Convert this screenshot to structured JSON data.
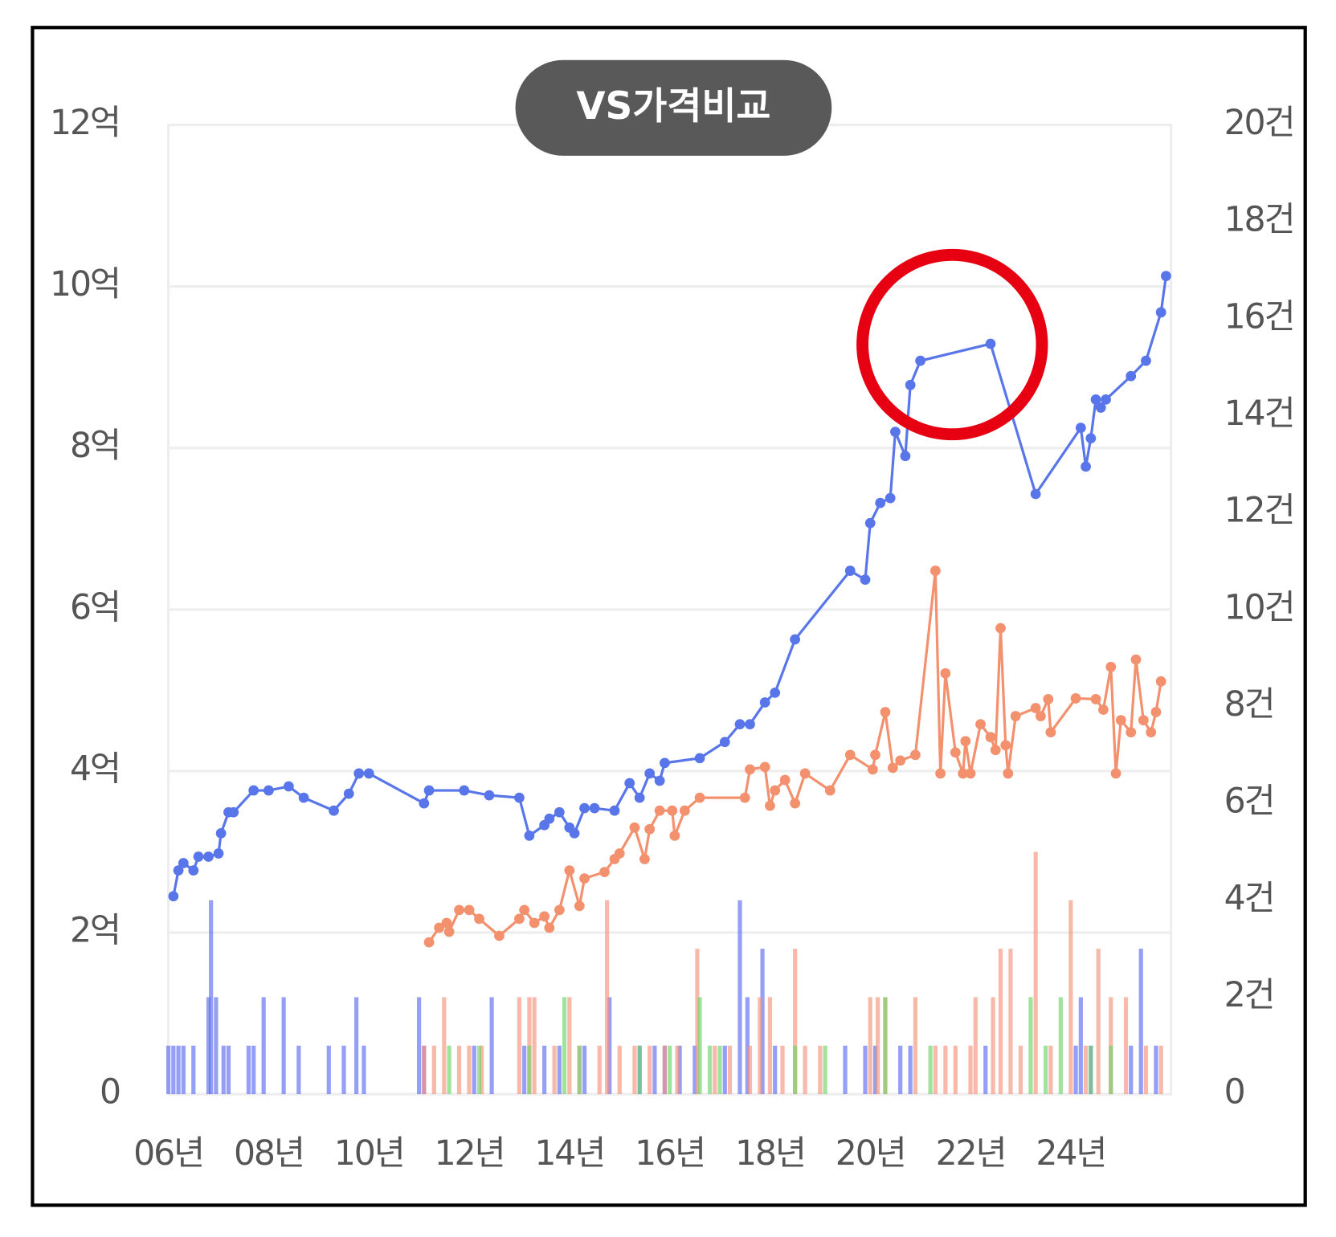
{
  "chart_data": {
    "type": "combo",
    "title": "VS가격비교",
    "xlim": [
      2006,
      2026
    ],
    "xticks": [
      {
        "value": 2006,
        "label": "06년"
      },
      {
        "value": 2008,
        "label": "08년"
      },
      {
        "value": 2010,
        "label": "10년"
      },
      {
        "value": 2012,
        "label": "12년"
      },
      {
        "value": 2014,
        "label": "14년"
      },
      {
        "value": 2016,
        "label": "16년"
      },
      {
        "value": 2018,
        "label": "18년"
      },
      {
        "value": 2020,
        "label": "20년"
      },
      {
        "value": 2022,
        "label": "22년"
      },
      {
        "value": 2024,
        "label": "24년"
      }
    ],
    "ylim": [
      0,
      12
    ],
    "yticks": [
      0,
      {
        "value": 2,
        "label": "2억"
      },
      {
        "value": 4,
        "label": "4억"
      },
      {
        "value": 6,
        "label": "6억"
      },
      {
        "value": 8,
        "label": "8억"
      },
      {
        "value": 10,
        "label": "10억"
      },
      {
        "value": 12,
        "label": "12억"
      }
    ],
    "y2lim": [
      0,
      20
    ],
    "y2ticks": [
      0,
      {
        "value": 2,
        "label": "2건"
      },
      {
        "value": 4,
        "label": "4건"
      },
      {
        "value": 6,
        "label": "6건"
      },
      {
        "value": 8,
        "label": "8건"
      },
      {
        "value": 10,
        "label": "10건"
      },
      {
        "value": 12,
        "label": "12건"
      },
      {
        "value": 14,
        "label": "14건"
      },
      {
        "value": 16,
        "label": "16건"
      },
      {
        "value": 18,
        "label": "18건"
      },
      {
        "value": 20,
        "label": "20건"
      }
    ],
    "grid": true,
    "series": [
      {
        "type": "bar",
        "axis": "y2",
        "color": "#5c6cf0",
        "x": [
          2006.0,
          2006.1,
          2006.2,
          2006.3,
          2006.5,
          2006.8,
          2006.85,
          2006.95,
          2007.1,
          2007.2,
          2007.6,
          2007.7,
          2007.9,
          2008.3,
          2008.6,
          2009.2,
          2009.5,
          2009.75,
          2009.9,
          2011.0,
          2011.1,
          2012.1,
          2012.45,
          2013.1,
          2013.5,
          2013.8,
          2014.3,
          2014.8,
          2015.4,
          2015.7,
          2015.9,
          2016.2,
          2016.5,
          2017.1,
          2017.4,
          2017.55,
          2017.85,
          2018.1,
          2019.5,
          2019.9,
          2020.1,
          2020.6,
          2020.8,
          2022.3,
          2024.1,
          2024.2,
          2024.4,
          2025.2,
          2025.4,
          2025.7
        ],
        "values": [
          1,
          1,
          1,
          1,
          1,
          2,
          4,
          2,
          1,
          1,
          1,
          1,
          2,
          2,
          1,
          1,
          1,
          2,
          1,
          2,
          1,
          1,
          2,
          1,
          1,
          1,
          1,
          2,
          1,
          1,
          1,
          1,
          1,
          1,
          4,
          2,
          3,
          1,
          1,
          1,
          1,
          1,
          1,
          1,
          1,
          2,
          1,
          1,
          3,
          1
        ]
      },
      {
        "type": "bar",
        "axis": "y2",
        "color": "#f5937c",
        "x": [
          2011.1,
          2011.3,
          2011.5,
          2011.8,
          2012.0,
          2012.25,
          2013.0,
          2013.2,
          2013.3,
          2013.7,
          2014.0,
          2014.2,
          2014.6,
          2014.75,
          2015.0,
          2015.3,
          2015.6,
          2015.9,
          2016.15,
          2016.55,
          2016.9,
          2017.2,
          2017.6,
          2017.8,
          2018.0,
          2018.25,
          2018.5,
          2018.7,
          2019.0,
          2020.0,
          2020.15,
          2020.3,
          2020.9,
          2021.3,
          2021.5,
          2021.7,
          2022.0,
          2022.1,
          2022.45,
          2022.6,
          2022.8,
          2023.0,
          2023.3,
          2023.6,
          2024.0,
          2024.3,
          2024.55,
          2024.8,
          2025.1,
          2025.5,
          2025.8
        ],
        "values": [
          1,
          1,
          2,
          1,
          1,
          1,
          2,
          2,
          2,
          1,
          2,
          1,
          1,
          4,
          1,
          1,
          1,
          1,
          1,
          3,
          1,
          1,
          1,
          2,
          2,
          1,
          3,
          1,
          1,
          2,
          2,
          2,
          2,
          1,
          1,
          1,
          1,
          2,
          2,
          3,
          3,
          1,
          5,
          1,
          4,
          1,
          3,
          2,
          2,
          1,
          1
        ]
      },
      {
        "type": "bar",
        "axis": "y2",
        "color": "#6fd36a",
        "x": [
          2011.6,
          2012.2,
          2013.2,
          2013.9,
          2014.2,
          2015.4,
          2016.0,
          2016.6,
          2016.8,
          2017.0,
          2018.5,
          2019.1,
          2020.3,
          2021.2,
          2023.2,
          2023.5,
          2023.8,
          2024.4,
          2024.8
        ],
        "values": [
          1,
          1,
          1,
          2,
          1,
          1,
          1,
          2,
          1,
          1,
          1,
          1,
          2,
          1,
          2,
          1,
          2,
          1,
          1
        ]
      },
      {
        "type": "line",
        "color": "#5876ea",
        "x": [
          2006.1,
          2006.2,
          2006.3,
          2006.5,
          2006.6,
          2006.8,
          2007.0,
          2007.05,
          2007.2,
          2007.3,
          2007.7,
          2008.0,
          2008.4,
          2008.7,
          2009.3,
          2009.6,
          2009.8,
          2010.0,
          2011.1,
          2011.2,
          2011.9,
          2012.4,
          2013.0,
          2013.2,
          2013.5,
          2013.6,
          2013.8,
          2014.0,
          2014.1,
          2014.3,
          2014.5,
          2014.9,
          2015.2,
          2015.4,
          2015.6,
          2015.8,
          2015.9,
          2016.6,
          2017.1,
          2017.4,
          2017.6,
          2017.9,
          2018.1,
          2018.5,
          2019.6,
          2019.9,
          2020.0,
          2020.2,
          2020.4,
          2020.5,
          2020.7,
          2020.8,
          2021.0,
          2022.4,
          2023.3,
          2024.2,
          2024.3,
          2024.4,
          2024.5,
          2024.6,
          2024.7,
          2025.2,
          2025.5,
          2025.8,
          2025.9
        ],
        "values": [
          2.45,
          2.77,
          2.86,
          2.77,
          2.94,
          2.94,
          2.98,
          3.23,
          3.49,
          3.49,
          3.76,
          3.76,
          3.81,
          3.67,
          3.51,
          3.72,
          3.97,
          3.97,
          3.6,
          3.76,
          3.76,
          3.7,
          3.67,
          3.2,
          3.33,
          3.41,
          3.49,
          3.3,
          3.23,
          3.54,
          3.54,
          3.51,
          3.85,
          3.67,
          3.97,
          3.88,
          4.1,
          4.16,
          4.36,
          4.58,
          4.58,
          4.85,
          4.97,
          5.63,
          6.48,
          6.37,
          7.07,
          7.32,
          7.38,
          8.2,
          7.9,
          8.78,
          9.08,
          9.29,
          7.43,
          8.25,
          7.77,
          8.12,
          8.6,
          8.5,
          8.6,
          8.89,
          9.08,
          9.68,
          10.13
        ]
      },
      {
        "type": "line",
        "color": "#f3906e",
        "x": [
          2011.2,
          2011.4,
          2011.55,
          2011.6,
          2011.8,
          2012.0,
          2012.2,
          2012.6,
          2013.0,
          2013.1,
          2013.3,
          2013.5,
          2013.6,
          2013.8,
          2014.0,
          2014.2,
          2014.3,
          2014.7,
          2014.9,
          2015.0,
          2015.3,
          2015.5,
          2015.6,
          2015.8,
          2016.05,
          2016.1,
          2016.3,
          2016.6,
          2017.5,
          2017.6,
          2017.9,
          2018.0,
          2018.1,
          2018.3,
          2018.5,
          2018.7,
          2019.2,
          2019.6,
          2020.05,
          2020.1,
          2020.3,
          2020.45,
          2020.6,
          2020.9,
          2021.3,
          2021.4,
          2021.5,
          2021.7,
          2021.85,
          2021.9,
          2022.0,
          2022.2,
          2022.4,
          2022.5,
          2022.6,
          2022.7,
          2022.75,
          2022.9,
          2023.3,
          2023.4,
          2023.55,
          2023.6,
          2024.1,
          2024.5,
          2024.65,
          2024.8,
          2024.9,
          2025.0,
          2025.2,
          2025.3,
          2025.45,
          2025.6,
          2025.7,
          2025.8
        ],
        "values": [
          1.88,
          2.06,
          2.12,
          2.01,
          2.28,
          2.28,
          2.17,
          1.96,
          2.17,
          2.28,
          2.12,
          2.2,
          2.06,
          2.28,
          2.77,
          2.33,
          2.67,
          2.75,
          2.91,
          2.98,
          3.3,
          2.91,
          3.28,
          3.51,
          3.51,
          3.2,
          3.51,
          3.67,
          3.67,
          4.02,
          4.05,
          3.57,
          3.76,
          3.89,
          3.6,
          3.97,
          3.76,
          4.2,
          4.02,
          4.2,
          4.73,
          4.04,
          4.13,
          4.2,
          6.48,
          3.97,
          5.21,
          4.23,
          3.97,
          4.37,
          3.97,
          4.58,
          4.42,
          4.26,
          5.77,
          4.32,
          3.97,
          4.68,
          4.78,
          4.68,
          4.89,
          4.48,
          4.9,
          4.89,
          4.76,
          5.29,
          3.97,
          4.63,
          4.48,
          5.38,
          4.63,
          4.48,
          4.73,
          5.11
        ]
      }
    ]
  }
}
